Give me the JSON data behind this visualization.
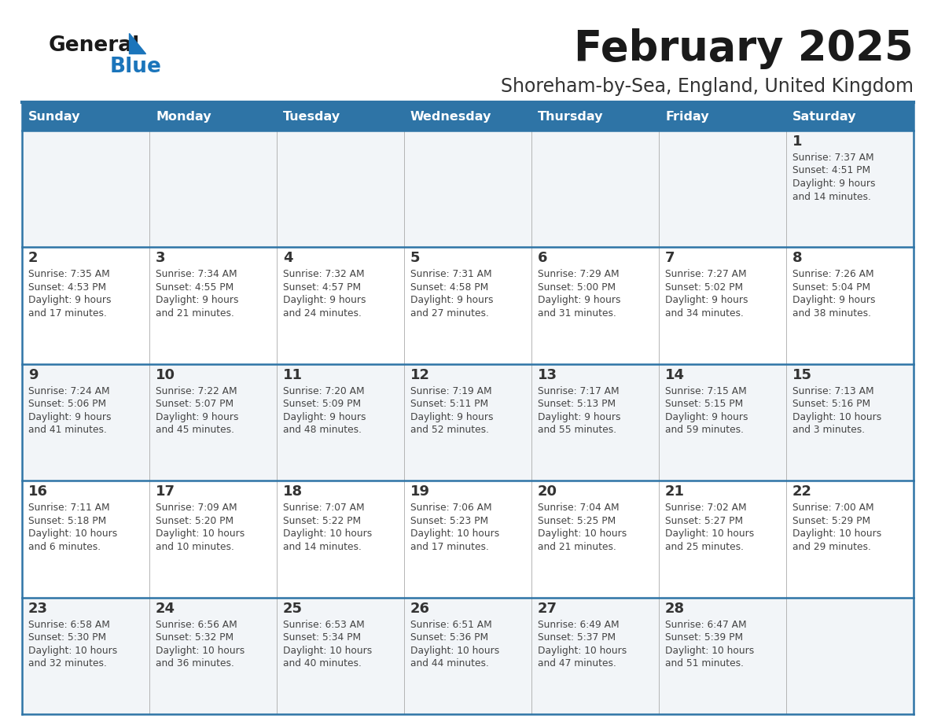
{
  "title": "February 2025",
  "subtitle": "Shoreham-by-Sea, England, United Kingdom",
  "days_of_week": [
    "Sunday",
    "Monday",
    "Tuesday",
    "Wednesday",
    "Thursday",
    "Friday",
    "Saturday"
  ],
  "header_bg": "#2E74A6",
  "header_text": "#FFFFFF",
  "cell_bg_odd": "#F2F5F8",
  "cell_bg_even": "#FFFFFF",
  "border_color": "#2E74A6",
  "day_num_color": "#333333",
  "info_text_color": "#444444",
  "title_color": "#1a1a1a",
  "subtitle_color": "#333333",
  "logo_general_color": "#1a1a1a",
  "logo_blue_color": "#1B75BB",
  "row_alternating": [
    1,
    0,
    1,
    0,
    1
  ],
  "calendar": [
    [
      {
        "day": null,
        "sunrise": null,
        "sunset": null,
        "daylight": null
      },
      {
        "day": null,
        "sunrise": null,
        "sunset": null,
        "daylight": null
      },
      {
        "day": null,
        "sunrise": null,
        "sunset": null,
        "daylight": null
      },
      {
        "day": null,
        "sunrise": null,
        "sunset": null,
        "daylight": null
      },
      {
        "day": null,
        "sunrise": null,
        "sunset": null,
        "daylight": null
      },
      {
        "day": null,
        "sunrise": null,
        "sunset": null,
        "daylight": null
      },
      {
        "day": 1,
        "sunrise": "7:37 AM",
        "sunset": "4:51 PM",
        "daylight": "9 hours\nand 14 minutes."
      }
    ],
    [
      {
        "day": 2,
        "sunrise": "7:35 AM",
        "sunset": "4:53 PM",
        "daylight": "9 hours\nand 17 minutes."
      },
      {
        "day": 3,
        "sunrise": "7:34 AM",
        "sunset": "4:55 PM",
        "daylight": "9 hours\nand 21 minutes."
      },
      {
        "day": 4,
        "sunrise": "7:32 AM",
        "sunset": "4:57 PM",
        "daylight": "9 hours\nand 24 minutes."
      },
      {
        "day": 5,
        "sunrise": "7:31 AM",
        "sunset": "4:58 PM",
        "daylight": "9 hours\nand 27 minutes."
      },
      {
        "day": 6,
        "sunrise": "7:29 AM",
        "sunset": "5:00 PM",
        "daylight": "9 hours\nand 31 minutes."
      },
      {
        "day": 7,
        "sunrise": "7:27 AM",
        "sunset": "5:02 PM",
        "daylight": "9 hours\nand 34 minutes."
      },
      {
        "day": 8,
        "sunrise": "7:26 AM",
        "sunset": "5:04 PM",
        "daylight": "9 hours\nand 38 minutes."
      }
    ],
    [
      {
        "day": 9,
        "sunrise": "7:24 AM",
        "sunset": "5:06 PM",
        "daylight": "9 hours\nand 41 minutes."
      },
      {
        "day": 10,
        "sunrise": "7:22 AM",
        "sunset": "5:07 PM",
        "daylight": "9 hours\nand 45 minutes."
      },
      {
        "day": 11,
        "sunrise": "7:20 AM",
        "sunset": "5:09 PM",
        "daylight": "9 hours\nand 48 minutes."
      },
      {
        "day": 12,
        "sunrise": "7:19 AM",
        "sunset": "5:11 PM",
        "daylight": "9 hours\nand 52 minutes."
      },
      {
        "day": 13,
        "sunrise": "7:17 AM",
        "sunset": "5:13 PM",
        "daylight": "9 hours\nand 55 minutes."
      },
      {
        "day": 14,
        "sunrise": "7:15 AM",
        "sunset": "5:15 PM",
        "daylight": "9 hours\nand 59 minutes."
      },
      {
        "day": 15,
        "sunrise": "7:13 AM",
        "sunset": "5:16 PM",
        "daylight": "10 hours\nand 3 minutes."
      }
    ],
    [
      {
        "day": 16,
        "sunrise": "7:11 AM",
        "sunset": "5:18 PM",
        "daylight": "10 hours\nand 6 minutes."
      },
      {
        "day": 17,
        "sunrise": "7:09 AM",
        "sunset": "5:20 PM",
        "daylight": "10 hours\nand 10 minutes."
      },
      {
        "day": 18,
        "sunrise": "7:07 AM",
        "sunset": "5:22 PM",
        "daylight": "10 hours\nand 14 minutes."
      },
      {
        "day": 19,
        "sunrise": "7:06 AM",
        "sunset": "5:23 PM",
        "daylight": "10 hours\nand 17 minutes."
      },
      {
        "day": 20,
        "sunrise": "7:04 AM",
        "sunset": "5:25 PM",
        "daylight": "10 hours\nand 21 minutes."
      },
      {
        "day": 21,
        "sunrise": "7:02 AM",
        "sunset": "5:27 PM",
        "daylight": "10 hours\nand 25 minutes."
      },
      {
        "day": 22,
        "sunrise": "7:00 AM",
        "sunset": "5:29 PM",
        "daylight": "10 hours\nand 29 minutes."
      }
    ],
    [
      {
        "day": 23,
        "sunrise": "6:58 AM",
        "sunset": "5:30 PM",
        "daylight": "10 hours\nand 32 minutes."
      },
      {
        "day": 24,
        "sunrise": "6:56 AM",
        "sunset": "5:32 PM",
        "daylight": "10 hours\nand 36 minutes."
      },
      {
        "day": 25,
        "sunrise": "6:53 AM",
        "sunset": "5:34 PM",
        "daylight": "10 hours\nand 40 minutes."
      },
      {
        "day": 26,
        "sunrise": "6:51 AM",
        "sunset": "5:36 PM",
        "daylight": "10 hours\nand 44 minutes."
      },
      {
        "day": 27,
        "sunrise": "6:49 AM",
        "sunset": "5:37 PM",
        "daylight": "10 hours\nand 47 minutes."
      },
      {
        "day": 28,
        "sunrise": "6:47 AM",
        "sunset": "5:39 PM",
        "daylight": "10 hours\nand 51 minutes."
      },
      {
        "day": null,
        "sunrise": null,
        "sunset": null,
        "daylight": null
      }
    ]
  ]
}
